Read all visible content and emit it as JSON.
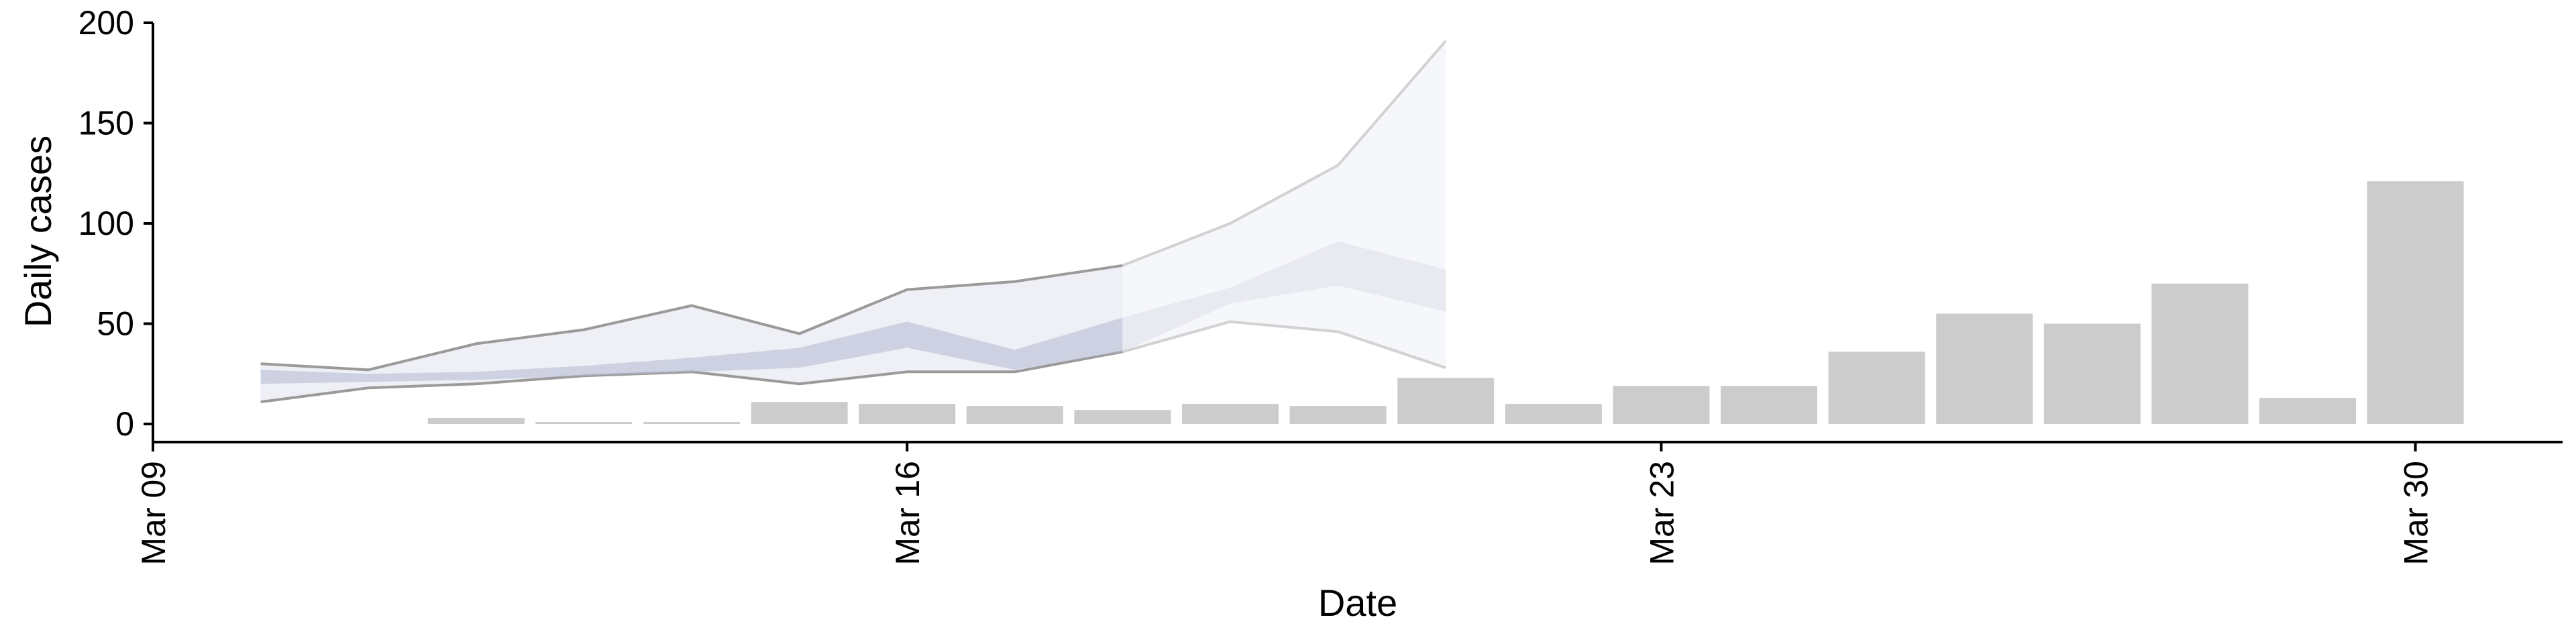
{
  "chart_data": {
    "type": "bar",
    "title": "",
    "xlabel": "Date",
    "ylabel": "Daily cases",
    "ylim": [
      0,
      200
    ],
    "yticks": [
      0,
      50,
      100,
      150,
      200
    ],
    "x_domain": [
      "2020-03-09",
      "2020-04-01"
    ],
    "xticks": [
      {
        "date": "2020-03-09",
        "label": "Mar 09"
      },
      {
        "date": "2020-03-16",
        "label": "Mar 16"
      },
      {
        "date": "2020-03-23",
        "label": "Mar 23"
      },
      {
        "date": "2020-03-30",
        "label": "Mar 30"
      }
    ],
    "bars": {
      "color": "#cccccc",
      "x": [
        "2020-03-12",
        "2020-03-13",
        "2020-03-14",
        "2020-03-15",
        "2020-03-16",
        "2020-03-17",
        "2020-03-18",
        "2020-03-19",
        "2020-03-20",
        "2020-03-21",
        "2020-03-22",
        "2020-03-23",
        "2020-03-24",
        "2020-03-25",
        "2020-03-26",
        "2020-03-27",
        "2020-03-28",
        "2020-03-29",
        "2020-03-30"
      ],
      "values": [
        3,
        1,
        1,
        11,
        10,
        9,
        7,
        10,
        9,
        23,
        10,
        19,
        19,
        36,
        55,
        50,
        70,
        13,
        121
      ]
    },
    "bands": [
      {
        "role": "outer-band",
        "color": "#dfe1ec",
        "x": [
          "2020-03-10",
          "2020-03-11",
          "2020-03-12",
          "2020-03-13",
          "2020-03-14",
          "2020-03-15",
          "2020-03-16",
          "2020-03-17",
          "2020-03-18"
        ],
        "upper": [
          30,
          27,
          40,
          47,
          59,
          45,
          67,
          71,
          79
        ],
        "lower": [
          11,
          18,
          20,
          24,
          26,
          20,
          26,
          26,
          36
        ]
      },
      {
        "role": "inner-band",
        "color": "#b7bcd3",
        "x": [
          "2020-03-10",
          "2020-03-11",
          "2020-03-12",
          "2020-03-13",
          "2020-03-14",
          "2020-03-15",
          "2020-03-16",
          "2020-03-17",
          "2020-03-18"
        ],
        "upper": [
          27,
          25,
          26,
          29,
          33,
          38,
          51,
          37,
          53
        ],
        "lower": [
          20,
          21,
          22,
          24,
          26,
          28,
          38,
          27,
          36
        ]
      },
      {
        "role": "forecast-outer-band",
        "color": "#eceef4",
        "x": [
          "2020-03-18",
          "2020-03-19",
          "2020-03-20",
          "2020-03-21"
        ],
        "upper": [
          79,
          100,
          129,
          191
        ],
        "lower": [
          36,
          51,
          46,
          28
        ]
      },
      {
        "role": "forecast-inner-band",
        "color": "#dcdfea",
        "x": [
          "2020-03-18",
          "2020-03-19",
          "2020-03-20",
          "2020-03-21"
        ],
        "upper": [
          53,
          68,
          91,
          77
        ],
        "lower": [
          36,
          60,
          69,
          56
        ]
      }
    ],
    "grid": false,
    "legend": "none"
  }
}
